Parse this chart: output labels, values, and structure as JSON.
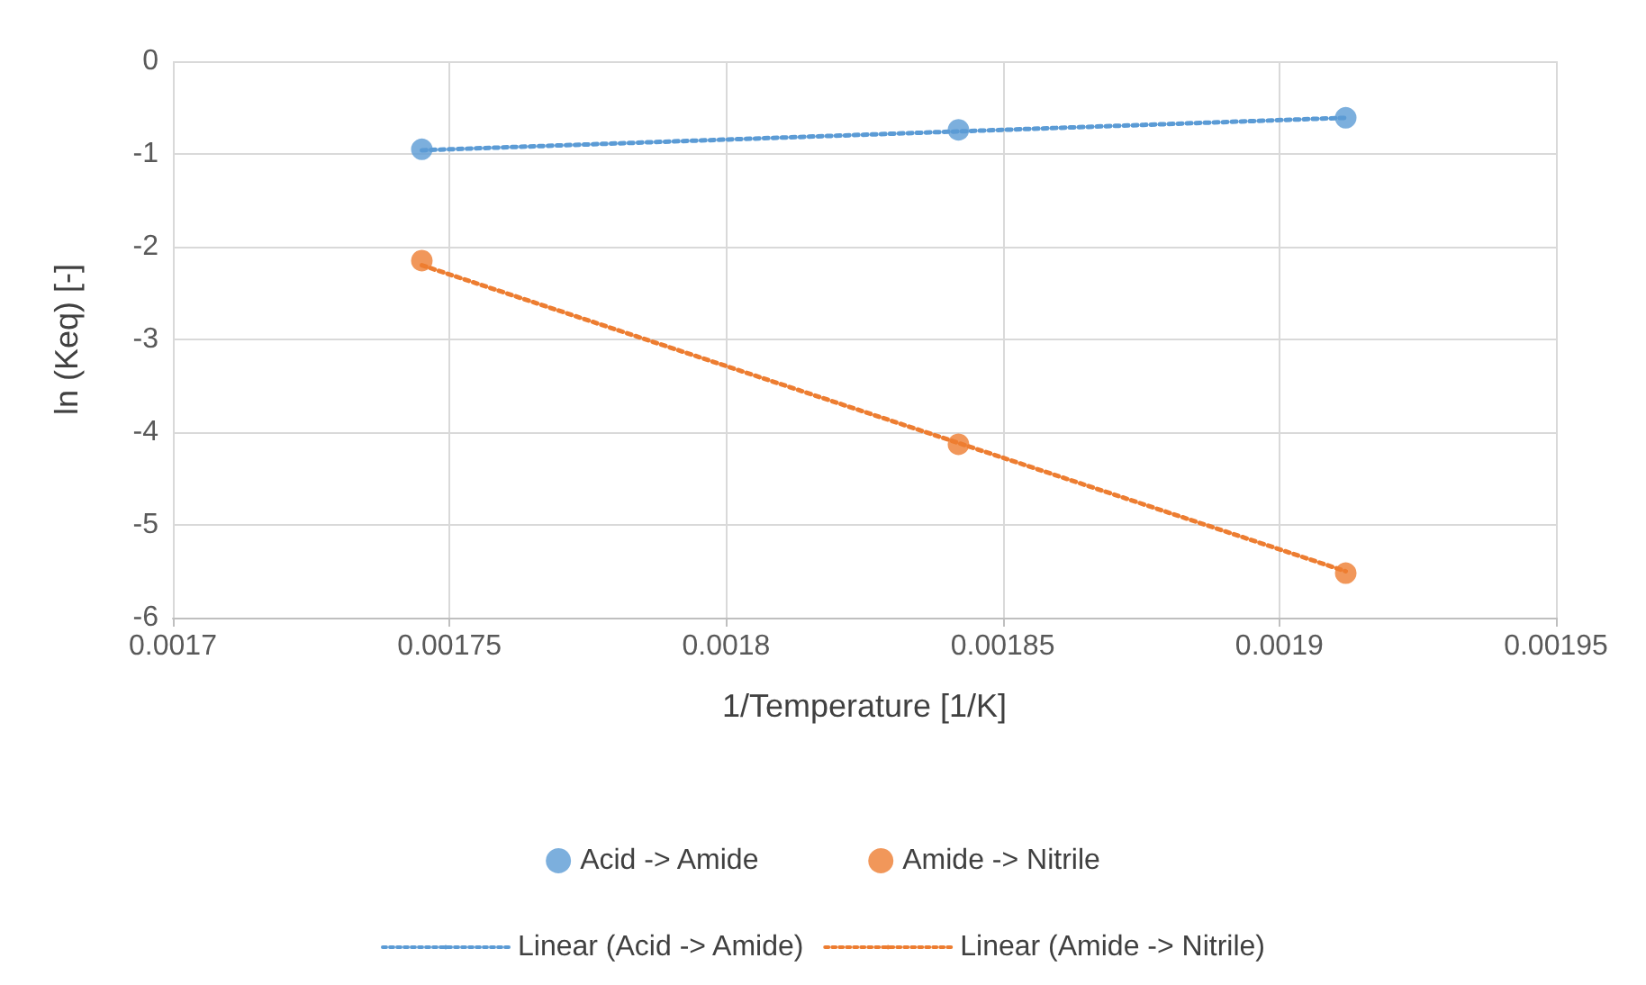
{
  "chart_data": {
    "type": "scatter",
    "xlabel": "1/Temperature [1/K]",
    "ylabel": "ln (Keq) [-]",
    "xlim": [
      0.0017,
      0.00195
    ],
    "xticks": [
      0.0017,
      0.00175,
      0.0018,
      0.00185,
      0.0019,
      0.00195
    ],
    "ylim": [
      -6,
      0
    ],
    "yticks": [
      -6,
      -5,
      -4,
      -3,
      -2,
      -1,
      0
    ],
    "grid": true,
    "legend": "bottom",
    "series": [
      {
        "name": "Acid -> Amide",
        "marker": "circle",
        "color": "#5b9bd5",
        "x": [
          0.001745,
          0.001842,
          0.001912
        ],
        "values": [
          -0.95,
          -0.74,
          -0.61
        ]
      },
      {
        "name": "Amide -> Nitrile",
        "marker": "circle",
        "color": "#ed7d31",
        "x": [
          0.001745,
          0.001842,
          0.001912
        ],
        "values": [
          -2.15,
          -4.13,
          -5.52
        ]
      },
      {
        "name": "Linear (Acid -> Amide)",
        "type": "line",
        "line_style": "dotted",
        "color": "#5b9bd5",
        "x": [
          0.001745,
          0.001912
        ],
        "values": [
          -0.96,
          -0.61
        ]
      },
      {
        "name": "Linear (Amide -> Nitrile)",
        "type": "line",
        "line_style": "dotted",
        "color": "#ed7d31",
        "x": [
          0.001745,
          0.001912
        ],
        "values": [
          -2.2,
          -5.5
        ]
      }
    ]
  }
}
